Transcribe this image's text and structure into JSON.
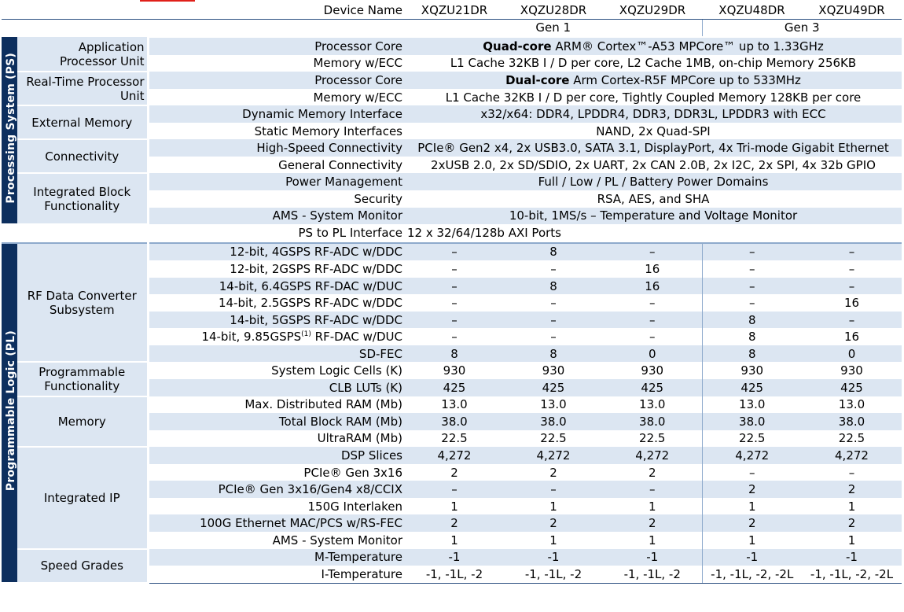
{
  "header": {
    "label": "Device Name",
    "devices": [
      "XQZU21DR",
      "XQZU28DR",
      "XQZU29DR",
      "XQZU48DR",
      "XQZU49DR"
    ],
    "gen1": "Gen 1",
    "gen3": "Gen 3"
  },
  "sections": {
    "ps": "Processing System (PS)",
    "pl": "Programmable Logic (PL)"
  },
  "colors": {
    "band": "#0d2f5e",
    "shade": "#dce6f2",
    "accent": "#e0201a"
  },
  "ps": {
    "apu": {
      "cat1": "Application",
      "cat2": "Processor Unit",
      "core": {
        "label": "Processor Core",
        "bold": "Quad-core",
        "rest": " ARM® Cortex™-A53 MPCore™ up to 1.33GHz"
      },
      "mem": {
        "label": "Memory w/ECC",
        "value": "L1 Cache 32KB I / D per core, L2 Cache 1MB, on-chip Memory 256KB"
      }
    },
    "rpu": {
      "cat1": "Real-Time Processor",
      "cat2": "Unit",
      "core": {
        "label": "Processor Core",
        "bold": "Dual-core",
        "rest": " Arm Cortex-R5F MPCore up to 533MHz"
      },
      "mem": {
        "label": "Memory w/ECC",
        "value": "L1 Cache 32KB I / D per core, Tightly Coupled Memory 128KB per core"
      }
    },
    "ext": {
      "cat": "External Memory",
      "dyn": {
        "label": "Dynamic Memory Interface",
        "value": "x32/x64: DDR4, LPDDR4, DDR3, DDR3L, LPDDR3 with ECC"
      },
      "stat": {
        "label": "Static Memory Interfaces",
        "value": "NAND, 2x Quad-SPI"
      }
    },
    "conn": {
      "cat": "Connectivity",
      "hs": {
        "label": "High-Speed Connectivity",
        "value": "PCIe® Gen2 x4, 2x USB3.0, SATA 3.1, DisplayPort, 4x Tri-mode Gigabit Ethernet"
      },
      "gen": {
        "label": "General Connectivity",
        "value": "2xUSB 2.0, 2x SD/SDIO,  2x UART, 2x CAN 2.0B,  2x I2C,  2x SPI,  4x 32b GPIO"
      }
    },
    "ibf": {
      "cat1": "Integrated Block",
      "cat2": "Functionality",
      "pm": {
        "label": "Power Management",
        "value": "Full / Low / PL / Battery Power Domains"
      },
      "sec": {
        "label": "Security",
        "value": "RSA, AES, and SHA"
      },
      "ams": {
        "label": "AMS - System Monitor",
        "value": "10-bit, 1MS/s – Temperature and Voltage Monitor"
      }
    },
    "pspl": {
      "label": "PS to PL Interface",
      "value": "12  x 32/64/128b AXI Ports"
    }
  },
  "rf": {
    "cat1": "RF Data Converter",
    "cat2": "Subsystem",
    "rows": [
      {
        "label": "12-bit, 4GSPS RF-ADC w/DDC",
        "values": [
          "–",
          "8",
          "–",
          "–",
          "–"
        ]
      },
      {
        "label": "12-bit, 2GSPS RF-ADC w/DDC",
        "values": [
          "–",
          "–",
          "16",
          "–",
          "–"
        ]
      },
      {
        "label": "14-bit, 6.4GSPS RF-DAC w/DUC",
        "values": [
          "–",
          "8",
          "16",
          "–",
          "–"
        ]
      },
      {
        "label": "14-bit, 2.5GSPS RF-ADC w/DDC",
        "values": [
          "–",
          "–",
          "–",
          "–",
          "16"
        ]
      },
      {
        "label": "14-bit, 5GSPS RF-ADC w/DDC",
        "values": [
          "–",
          "–",
          "–",
          "8",
          "–"
        ]
      },
      {
        "label_pre": "14-bit, 9.85GSPS",
        "label_sup": "(1)",
        "label_post": " RF-DAC w/DUC",
        "values": [
          "–",
          "–",
          "–",
          "8",
          "16"
        ]
      },
      {
        "label": "SD-FEC",
        "values": [
          "8",
          "8",
          "0",
          "8",
          "0"
        ]
      }
    ]
  },
  "progfunc": {
    "cat1": "Programmable",
    "cat2": "Functionality",
    "rows": [
      {
        "label": "System Logic Cells (K)",
        "values": [
          "930",
          "930",
          "930",
          "930",
          "930"
        ]
      },
      {
        "label": "CLB LUTs (K)",
        "values": [
          "425",
          "425",
          "425",
          "425",
          "425"
        ]
      }
    ]
  },
  "memory": {
    "cat": "Memory",
    "rows": [
      {
        "label": "Max. Distributed RAM (Mb)",
        "values": [
          "13.0",
          "13.0",
          "13.0",
          "13.0",
          "13.0"
        ]
      },
      {
        "label": "Total Block RAM (Mb)",
        "values": [
          "38.0",
          "38.0",
          "38.0",
          "38.0",
          "38.0"
        ]
      },
      {
        "label": "UltraRAM (Mb)",
        "values": [
          "22.5",
          "22.5",
          "22.5",
          "22.5",
          "22.5"
        ]
      }
    ]
  },
  "ip": {
    "cat": "Integrated IP",
    "rows": [
      {
        "label": "DSP Slices",
        "values": [
          "4,272",
          "4,272",
          "4,272",
          "4,272",
          "4,272"
        ]
      },
      {
        "label": "PCIe® Gen 3x16",
        "values": [
          "2",
          "2",
          "2",
          "–",
          "–"
        ]
      },
      {
        "label": "PCIe® Gen 3x16/Gen4 x8/CCIX",
        "values": [
          "–",
          "–",
          "–",
          "2",
          "2"
        ]
      },
      {
        "label": "150G Interlaken",
        "values": [
          "1",
          "1",
          "1",
          "1",
          "1"
        ]
      },
      {
        "label": "100G Ethernet MAC/PCS w/RS-FEC",
        "values": [
          "2",
          "2",
          "2",
          "2",
          "2"
        ]
      },
      {
        "label": "AMS - System Monitor",
        "values": [
          "1",
          "1",
          "1",
          "1",
          "1"
        ]
      }
    ]
  },
  "speed": {
    "cat": "Speed Grades",
    "rows": [
      {
        "label": "M-Temperature",
        "values": [
          "-1",
          "-1",
          "-1",
          "-1",
          "-1"
        ]
      },
      {
        "label": "I-Temperature",
        "values": [
          "-1, -1L, -2",
          "-1, -1L, -2",
          "-1, -1L, -2",
          "-1, -1L, -2, -2L",
          "-1, -1L, -2, -2L"
        ]
      }
    ]
  }
}
